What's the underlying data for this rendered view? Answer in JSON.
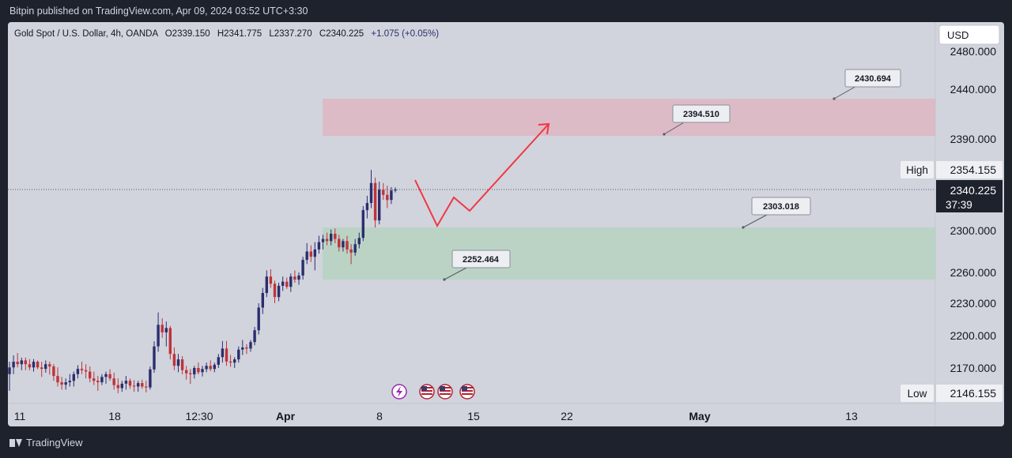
{
  "header": {
    "publisher_line": "Bitpin published on TradingView.com, Apr 09, 2024 03:52 UTC+3:30"
  },
  "legend": {
    "symbol": "Gold Spot / U.S. Dollar, 4h, OANDA",
    "open": "O2339.150",
    "high": "H2341.775",
    "low": "L2337.270",
    "close": "C2340.225",
    "change": "+1.075 (+0.05%)"
  },
  "currency": "USD",
  "price_labels": {
    "high_tag": "High",
    "high_value": "2354.155",
    "low_tag": "Low",
    "low_value": "2146.155",
    "last_value": "2340.225",
    "countdown": "37:39"
  },
  "colors": {
    "up": "#2a2e6e",
    "down": "#c0323a",
    "supply_zone": "#e6a5b5",
    "demand_zone": "#a7d1b2",
    "projection": "#f23645",
    "chart_bg": "#d1d4dc",
    "frame": "#1e222d"
  },
  "icons": [
    "lightning-event-icon",
    "us-flag-icon",
    "us-flag-icon",
    "us-flag-icon"
  ],
  "footer": {
    "brand": "TradingView"
  },
  "chart_data": {
    "type": "candlestick",
    "title": "Gold Spot / U.S. Dollar, 4h, OANDA",
    "y_axis": {
      "scale": "non-linear",
      "ticks": [
        "2480.000",
        "2440.000",
        "2390.000",
        "2354.155",
        "2340.225",
        "2300.000",
        "2260.000",
        "2230.000",
        "2200.000",
        "2170.000",
        "2146.155"
      ]
    },
    "x_axis": {
      "ticks": [
        "11",
        "18",
        "12:30",
        "Apr",
        "8",
        "15",
        "22",
        "May",
        "13"
      ]
    },
    "zones": [
      {
        "name": "supply",
        "from": 2394.51,
        "to": 2430.694
      },
      {
        "name": "demand",
        "from": 2252.464,
        "to": 2303.018
      }
    ],
    "annotations": [
      "2430.694",
      "2394.510",
      "2303.018",
      "2252.464"
    ],
    "projection_path": [
      {
        "x": "Apr 9",
        "y": 2340
      },
      {
        "x": "Apr 10",
        "y": 2304
      },
      {
        "x": "Apr 11",
        "y": 2330
      },
      {
        "x": "Apr 12",
        "y": 2318
      },
      {
        "x": "Apr 19",
        "y": 2399
      }
    ],
    "candles_ohlc": [
      [
        2164.2,
        2175.8,
        2148.5,
        2170.5
      ],
      [
        2170.5,
        2181.7,
        2164.2,
        2175.8
      ],
      [
        2175.8,
        2183.9,
        2170.5,
        2173.5
      ],
      [
        2173.5,
        2179.6,
        2167.9,
        2177.0
      ],
      [
        2177.0,
        2179.6,
        2167.9,
        2173.5
      ],
      [
        2173.5,
        2178.2,
        2167.9,
        2170.5
      ],
      [
        2170.5,
        2178.2,
        2166.6,
        2175.8
      ],
      [
        2175.8,
        2177.0,
        2168.7,
        2170.5
      ],
      [
        2170.5,
        2175.8,
        2161.6,
        2169.2
      ],
      [
        2169.2,
        2177.0,
        2165.5,
        2173.5
      ],
      [
        2173.5,
        2175.8,
        2163.8,
        2171.4
      ],
      [
        2171.4,
        2173.5,
        2157.9,
        2162.5
      ],
      [
        2162.5,
        2170.5,
        2152.5,
        2156.5
      ],
      [
        2156.5,
        2161.6,
        2149.6,
        2154.3
      ],
      [
        2154.3,
        2160.2,
        2149.6,
        2156.5
      ],
      [
        2156.5,
        2164.2,
        2152.5,
        2157.9
      ],
      [
        2157.9,
        2166.6,
        2152.5,
        2164.2
      ],
      [
        2164.2,
        2172.6,
        2160.2,
        2169.2
      ],
      [
        2169.2,
        2175.8,
        2164.2,
        2167.9
      ],
      [
        2167.9,
        2173.5,
        2160.2,
        2166.6
      ],
      [
        2166.6,
        2171.4,
        2156.5,
        2160.2
      ],
      [
        2160.2,
        2166.6,
        2153.9,
        2157.9
      ],
      [
        2157.9,
        2162.5,
        2148.5,
        2156.5
      ],
      [
        2156.5,
        2164.2,
        2153.9,
        2161.6
      ],
      [
        2161.6,
        2166.6,
        2155.2,
        2164.2
      ],
      [
        2164.2,
        2168.7,
        2157.9,
        2160.2
      ],
      [
        2160.2,
        2165.5,
        2149.6,
        2153.9
      ],
      [
        2153.9,
        2160.2,
        2146.2,
        2151.0
      ],
      [
        2151.0,
        2157.9,
        2147.6,
        2155.2
      ],
      [
        2155.2,
        2162.5,
        2149.6,
        2157.9
      ],
      [
        2157.9,
        2160.2,
        2150.5,
        2153.3
      ],
      [
        2153.3,
        2158.6,
        2147.6,
        2152.5
      ],
      [
        2152.5,
        2157.9,
        2147.6,
        2155.8
      ],
      [
        2155.8,
        2159.0,
        2150.5,
        2152.5
      ],
      [
        2152.5,
        2157.9,
        2146.9,
        2151.6
      ],
      [
        2151.6,
        2171.4,
        2149.6,
        2168.7
      ],
      [
        2168.7,
        2194.8,
        2165.5,
        2190.0
      ],
      [
        2190.0,
        2221.5,
        2185.0,
        2210.0
      ],
      [
        2210.0,
        2216.0,
        2198.0,
        2203.0
      ],
      [
        2203.0,
        2213.0,
        2190.0,
        2207.0
      ],
      [
        2207.0,
        2209.0,
        2178.0,
        2183.0
      ],
      [
        2183.0,
        2189.0,
        2168.0,
        2172.0
      ],
      [
        2172.0,
        2183.0,
        2166.0,
        2178.0
      ],
      [
        2178.0,
        2181.0,
        2164.0,
        2168.0
      ],
      [
        2168.0,
        2172.0,
        2159.0,
        2165.0
      ],
      [
        2165.0,
        2169.0,
        2155.0,
        2164.0
      ],
      [
        2164.0,
        2172.0,
        2160.0,
        2170.0
      ],
      [
        2170.0,
        2175.0,
        2164.0,
        2166.0
      ],
      [
        2166.0,
        2172.0,
        2162.0,
        2169.0
      ],
      [
        2169.0,
        2175.0,
        2166.0,
        2172.0
      ],
      [
        2172.0,
        2177.0,
        2167.0,
        2169.0
      ],
      [
        2169.0,
        2175.0,
        2166.0,
        2173.0
      ],
      [
        2173.0,
        2183.0,
        2170.0,
        2180.0
      ],
      [
        2180.0,
        2195.0,
        2175.0,
        2188.0
      ],
      [
        2188.0,
        2195.0,
        2172.0,
        2176.0
      ],
      [
        2176.0,
        2182.0,
        2171.0,
        2175.0
      ],
      [
        2175.0,
        2180.0,
        2170.0,
        2178.0
      ],
      [
        2178.0,
        2190.0,
        2175.0,
        2187.0
      ],
      [
        2187.0,
        2196.0,
        2182.0,
        2189.0
      ],
      [
        2189.0,
        2192.0,
        2183.0,
        2188.0
      ],
      [
        2188.0,
        2196.0,
        2185.0,
        2194.0
      ],
      [
        2194.0,
        2208.0,
        2191.0,
        2205.0
      ],
      [
        2205.0,
        2230.0,
        2201.0,
        2226.0
      ],
      [
        2226.0,
        2245.0,
        2220.0,
        2240.0
      ],
      [
        2240.0,
        2262.0,
        2236.0,
        2256.0
      ],
      [
        2256.0,
        2263.0,
        2245.0,
        2249.0
      ],
      [
        2249.0,
        2252.0,
        2230.0,
        2236.0
      ],
      [
        2236.0,
        2250.0,
        2232.0,
        2247.0
      ],
      [
        2247.0,
        2256.0,
        2242.0,
        2251.0
      ],
      [
        2251.0,
        2255.0,
        2244.0,
        2246.0
      ],
      [
        2246.0,
        2259.0,
        2241.0,
        2256.0
      ],
      [
        2256.0,
        2262.0,
        2250.0,
        2253.0
      ],
      [
        2253.0,
        2260.0,
        2248.0,
        2257.0
      ],
      [
        2257.0,
        2275.0,
        2253.0,
        2272.0
      ],
      [
        2272.0,
        2288.0,
        2268.0,
        2280.0
      ],
      [
        2280.0,
        2286.0,
        2270.0,
        2275.0
      ],
      [
        2275.0,
        2289.0,
        2262.0,
        2282.0
      ],
      [
        2282.0,
        2295.0,
        2278.0,
        2289.0
      ],
      [
        2289.0,
        2296.0,
        2282.0,
        2292.0
      ],
      [
        2292.0,
        2298.0,
        2286.0,
        2290.0
      ],
      [
        2290.0,
        2301.0,
        2286.0,
        2297.0
      ],
      [
        2297.0,
        2302.0,
        2288.0,
        2292.0
      ],
      [
        2292.0,
        2296.0,
        2280.0,
        2284.0
      ],
      [
        2284.0,
        2292.0,
        2280.0,
        2290.0
      ],
      [
        2290.0,
        2295.0,
        2278.0,
        2282.0
      ],
      [
        2282.0,
        2287.0,
        2268.0,
        2279.0
      ],
      [
        2279.0,
        2292.0,
        2276.0,
        2287.0
      ],
      [
        2287.0,
        2298.0,
        2283.0,
        2293.0
      ],
      [
        2293.0,
        2324.0,
        2290.0,
        2320.0
      ],
      [
        2320.0,
        2334.0,
        2312.0,
        2327.0
      ],
      [
        2327.0,
        2355.0,
        2322.0,
        2345.0
      ],
      [
        2345.0,
        2349.0,
        2303.0,
        2310.0
      ],
      [
        2310.0,
        2346.0,
        2306.0,
        2340.0
      ],
      [
        2340.0,
        2345.0,
        2330.0,
        2335.0
      ],
      [
        2335.0,
        2343.0,
        2322.0,
        2330.0
      ],
      [
        2330.0,
        2342.0,
        2326.0,
        2339.2
      ],
      [
        2339.2,
        2341.8,
        2337.3,
        2340.2
      ]
    ]
  }
}
